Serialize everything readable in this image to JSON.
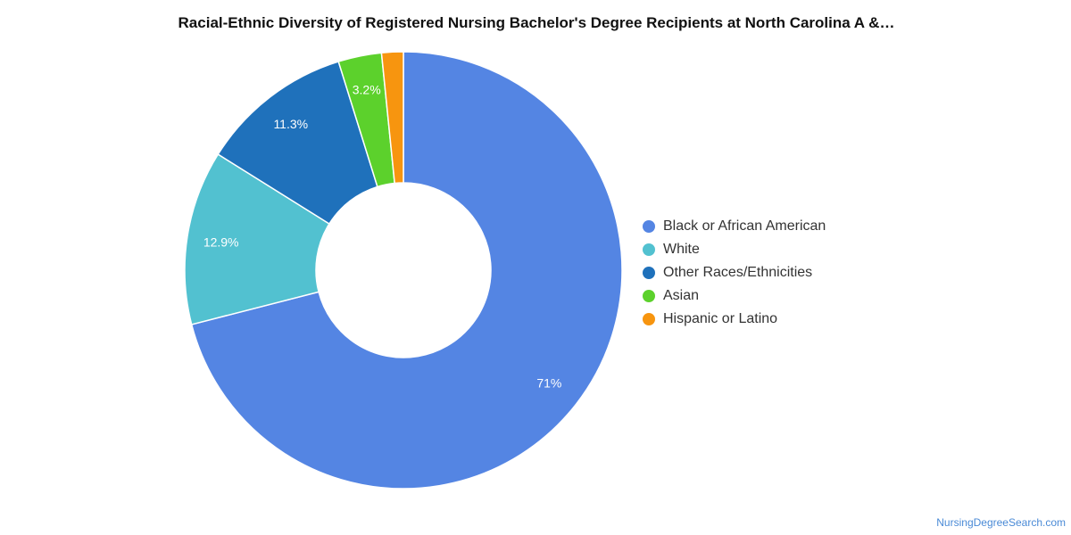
{
  "chart_data": {
    "type": "pie",
    "title": "Racial-Ethnic Diversity of Registered Nursing Bachelor's Degree Recipients at North Carolina A &…",
    "donut": true,
    "legend_position": "right",
    "slices": [
      {
        "name": "Black or African American",
        "value": 71.0,
        "label": "71%",
        "color": "#5485e3"
      },
      {
        "name": "White",
        "value": 12.9,
        "label": "12.9%",
        "color": "#52c1d0"
      },
      {
        "name": "Other Races/Ethnicities",
        "value": 11.3,
        "label": "11.3%",
        "color": "#1f71bb"
      },
      {
        "name": "Asian",
        "value": 3.2,
        "label": "3.2%",
        "color": "#5cd12c"
      },
      {
        "name": "Hispanic or Latino",
        "value": 1.6,
        "label": "",
        "color": "#f7950f"
      }
    ]
  },
  "source": "NursingDegreeSearch.com"
}
